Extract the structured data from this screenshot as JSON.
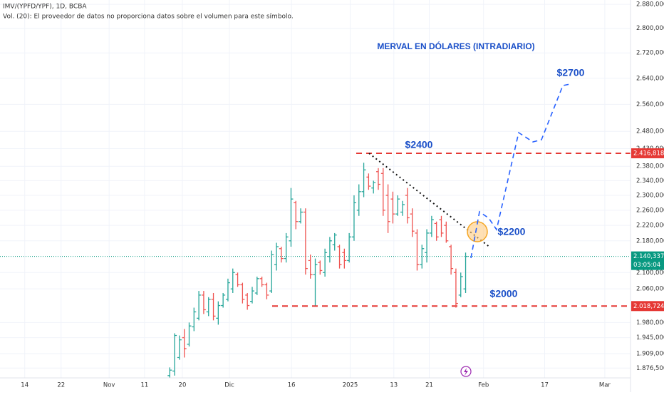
{
  "header": {
    "symbol": "IMV/(YPFD/YPF), 1D, BCBA",
    "volume_note": "Vol. (20): El proveedor de datos no proporciona datos sobre el volumen para este símbolo."
  },
  "chart_data": {
    "type": "ohlc",
    "title": "MERVAL EN DÓLARES (INTRADIARIO)",
    "x": [
      35,
      36,
      37,
      38,
      39,
      40,
      41,
      42,
      43,
      44,
      45,
      46,
      47,
      48,
      49,
      50,
      51,
      52,
      53,
      54,
      55,
      56,
      57,
      58,
      59,
      60,
      61,
      62,
      63,
      64,
      65,
      66,
      67,
      68,
      69,
      70,
      71,
      72,
      73,
      74,
      75,
      76,
      77,
      78,
      79,
      80,
      81,
      82,
      83,
      84,
      85,
      86,
      87,
      88,
      89,
      90,
      91,
      92,
      93,
      94,
      95,
      96
    ],
    "open": [
      1860000,
      1870000,
      1900000,
      1945000,
      1930000,
      1970000,
      1990000,
      2045000,
      2005000,
      2035000,
      1990000,
      2020000,
      2035000,
      2060000,
      2095000,
      2070000,
      2045000,
      2030000,
      2050000,
      2085000,
      2070000,
      2055000,
      2120000,
      2160000,
      2135000,
      2180000,
      2280000,
      2230000,
      2255000,
      2130000,
      2095000,
      2125000,
      2100000,
      2140000,
      2170000,
      2165000,
      2150000,
      2130000,
      2190000,
      2260000,
      2310000,
      2350000,
      2320000,
      2365000,
      2360000,
      2300000,
      2290000,
      2250000,
      2255000,
      2300000,
      2250000,
      2200000,
      2120000,
      2150000,
      2200000,
      2225000,
      2235000,
      2220000,
      2165000,
      2100000,
      2045000,
      2060000
    ],
    "high": [
      1878000,
      1955000,
      1950000,
      1965000,
      1980000,
      2015000,
      2055000,
      2055000,
      2040000,
      2050000,
      2030000,
      2050000,
      2085000,
      2110000,
      2100000,
      2075000,
      2050000,
      2065000,
      2090000,
      2090000,
      2075000,
      2155000,
      2175000,
      2165000,
      2200000,
      2320000,
      2285000,
      2265000,
      2265000,
      2145000,
      2135000,
      2130000,
      2160000,
      2190000,
      2200000,
      2170000,
      2160000,
      2200000,
      2300000,
      2330000,
      2390000,
      2360000,
      2340000,
      2375000,
      2375000,
      2330000,
      2310000,
      2300000,
      2285000,
      2320000,
      2265000,
      2210000,
      2170000,
      2210000,
      2245000,
      2230000,
      2245000,
      2230000,
      2170000,
      2110000,
      2100000,
      2150000
    ],
    "low": [
      1855000,
      1860000,
      1895000,
      1900000,
      1925000,
      1960000,
      1985000,
      2000000,
      1995000,
      1985000,
      1975000,
      2015000,
      2030000,
      2050000,
      2065000,
      2025000,
      2010000,
      2025000,
      2045000,
      2065000,
      2035000,
      2050000,
      2105000,
      2125000,
      2125000,
      2165000,
      2210000,
      2225000,
      2095000,
      2085000,
      2020000,
      2095000,
      2090000,
      2125000,
      2155000,
      2110000,
      2110000,
      2125000,
      2180000,
      2245000,
      2295000,
      2315000,
      2305000,
      2315000,
      2245000,
      2200000,
      2225000,
      2245000,
      2245000,
      2225000,
      2190000,
      2105000,
      2110000,
      2125000,
      2190000,
      2180000,
      2190000,
      2175000,
      2095000,
      2015000,
      2040000,
      2050000
    ],
    "close": [
      1872000,
      1950000,
      1940000,
      1920000,
      1972000,
      2005000,
      2045000,
      2010000,
      2035000,
      1995000,
      2020000,
      2045000,
      2075000,
      2100000,
      2070000,
      2035000,
      2020000,
      2055000,
      2085000,
      2070000,
      2045000,
      2145000,
      2165000,
      2135000,
      2190000,
      2290000,
      2230000,
      2255000,
      2110000,
      2095000,
      2120000,
      2105000,
      2150000,
      2180000,
      2195000,
      2120000,
      2130000,
      2190000,
      2280000,
      2310000,
      2370000,
      2325000,
      2335000,
      2330000,
      2260000,
      2230000,
      2250000,
      2290000,
      2275000,
      2240000,
      2205000,
      2120000,
      2160000,
      2200000,
      2235000,
      2190000,
      2200000,
      2180000,
      2110000,
      2025000,
      2090000,
      2140337
    ],
    "up_color": "#26a69a",
    "down_color": "#ef5350",
    "xlim": [
      0,
      130
    ],
    "xticks": [
      {
        "value": 5.1,
        "label": "14"
      },
      {
        "value": 12.6,
        "label": "22"
      },
      {
        "value": 22.5,
        "label": "Nov"
      },
      {
        "value": 29.8,
        "label": "11"
      },
      {
        "value": 37.6,
        "label": "20"
      },
      {
        "value": 47.3,
        "label": "Dic"
      },
      {
        "value": 60.1,
        "label": "16"
      },
      {
        "value": 72.2,
        "label": "2025"
      },
      {
        "value": 81.2,
        "label": "13"
      },
      {
        "value": 88.5,
        "label": "21"
      },
      {
        "value": 99.7,
        "label": "Feb"
      },
      {
        "value": 112.3,
        "label": "17"
      },
      {
        "value": 124.7,
        "label": "Mar"
      }
    ],
    "ylim": [
      1855000,
      2895000
    ],
    "log_scale": true,
    "grid": true,
    "yticks": [
      {
        "value": 2880000,
        "label": "2.880,000"
      },
      {
        "value": 2800000,
        "label": "2.800,000"
      },
      {
        "value": 2720000,
        "label": "2.720,000"
      },
      {
        "value": 2640000,
        "label": "2.640,000"
      },
      {
        "value": 2560000,
        "label": "2.560,000"
      },
      {
        "value": 2480000,
        "label": "2.480,000"
      },
      {
        "value": 2430000,
        "label": "2.430,000"
      },
      {
        "value": 2380000,
        "label": "2.380,000"
      },
      {
        "value": 2340000,
        "label": "2.340,000"
      },
      {
        "value": 2300000,
        "label": "2.300,000"
      },
      {
        "value": 2260000,
        "label": "2.260,000"
      },
      {
        "value": 2220000,
        "label": "2.220,000"
      },
      {
        "value": 2180000,
        "label": "2.180,000"
      },
      {
        "value": 2100000,
        "label": "2.100,000"
      },
      {
        "value": 2060000,
        "label": "2.060,000"
      },
      {
        "value": 1980000,
        "label": "1.980,000"
      },
      {
        "value": 1945000,
        "label": "1.945,000"
      },
      {
        "value": 1909000,
        "label": "1.909,000"
      },
      {
        "value": 1876500,
        "label": "1.876,500"
      }
    ],
    "levels": [
      {
        "value": 2416818,
        "label": "2.416,818",
        "color": "#e53935"
      },
      {
        "value": 2018724,
        "label": "2.018,724",
        "color": "#e53935"
      }
    ],
    "last_price": {
      "value": 2140337,
      "label": "2.140,337",
      "countdown": "03:05:04",
      "color": "#089981"
    },
    "annotations": [
      "$2400",
      "$2000",
      "$2200",
      "$2700"
    ]
  }
}
